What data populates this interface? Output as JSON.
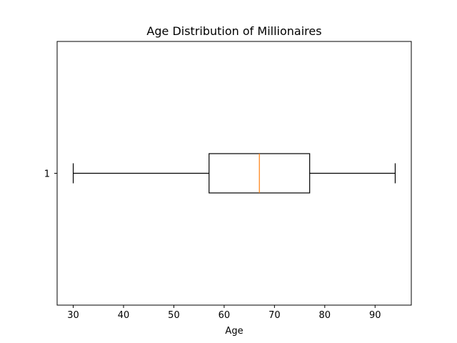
{
  "chart_data": {
    "type": "boxplot",
    "title": "Age Distribution of Millionaires",
    "xlabel": "Age",
    "ylabel": "",
    "orientation": "horizontal",
    "xlim": [
      26.8,
      97.2
    ],
    "xticks": [
      30,
      40,
      50,
      60,
      70,
      80,
      90
    ],
    "categories": [
      "1"
    ],
    "boxes": [
      {
        "category": "1",
        "whisker_low": 30,
        "q1": 57,
        "median": 67,
        "q3": 77,
        "whisker_high": 94
      }
    ],
    "grid": false,
    "colors": {
      "box": "#000000",
      "median": "#ff7f0e",
      "axes": "#000000"
    }
  }
}
